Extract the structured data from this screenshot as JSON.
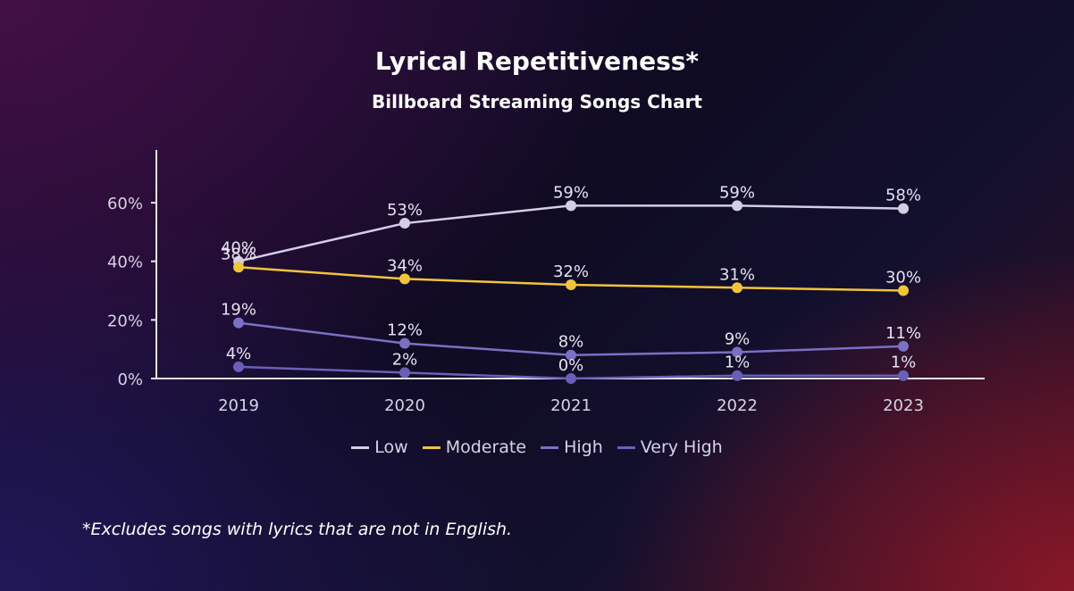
{
  "title": "Lyrical Repetitiveness*",
  "subtitle": "Billboard Streaming Songs Chart",
  "footnote": "*Excludes songs with lyrics that are not in English.",
  "colors": {
    "Low": "#d4cde6",
    "Moderate": "#f2c43b",
    "High": "#7a70c4",
    "Very High": "#6a5fb8",
    "axis": "#e9e6f2",
    "tick_text": "#d7d3e6"
  },
  "chart_data": {
    "type": "line",
    "title": "Lyrical Repetitiveness*",
    "subtitle": "Billboard Streaming Songs Chart",
    "x": [
      "2019",
      "2020",
      "2021",
      "2022",
      "2023"
    ],
    "ylim": [
      0,
      0.78
    ],
    "yticks": [
      0,
      0.2,
      0.4,
      0.6
    ],
    "ytick_labels": [
      "0%",
      "20%",
      "40%",
      "60%"
    ],
    "grid": false,
    "legend_position": "bottom-center",
    "series": [
      {
        "name": "Low",
        "values": [
          0.4,
          0.53,
          0.59,
          0.59,
          0.58
        ],
        "labels": [
          "40%",
          "53%",
          "59%",
          "59%",
          "58%"
        ]
      },
      {
        "name": "Moderate",
        "values": [
          0.38,
          0.34,
          0.32,
          0.31,
          0.3
        ],
        "labels": [
          "38%",
          "34%",
          "32%",
          "31%",
          "30%"
        ]
      },
      {
        "name": "High",
        "values": [
          0.19,
          0.12,
          0.08,
          0.09,
          0.11
        ],
        "labels": [
          "19%",
          "12%",
          "8%",
          "9%",
          "11%"
        ]
      },
      {
        "name": "Very High",
        "values": [
          0.04,
          0.02,
          0.0,
          0.01,
          0.01
        ],
        "labels": [
          "4%",
          "2%",
          "0%",
          "1%",
          "1%"
        ]
      }
    ]
  }
}
